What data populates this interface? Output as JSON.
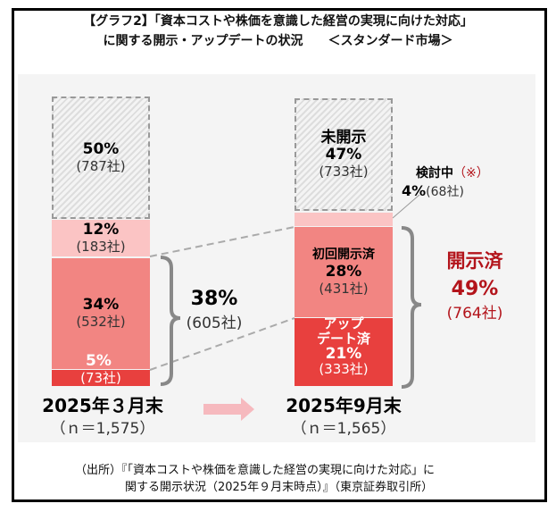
{
  "title": {
    "line1": "【グラフ2】「資本コストや株価を意識した経営の実現に向けた対応」",
    "line2": "に関する開示・アップデートの状況　　＜スタンダード市場＞"
  },
  "chart_data": {
    "type": "bar",
    "stacked": true,
    "categories": [
      "2025年３月末",
      "2025年9月末"
    ],
    "n_labels": [
      "（ｎ＝1,575）",
      "（ｎ＝1,565）"
    ],
    "series": [
      {
        "name": "アップデート済",
        "values": [
          5,
          21
        ],
        "counts": [
          73,
          333
        ]
      },
      {
        "name": "初回開示済",
        "values": [
          34,
          28
        ],
        "counts": [
          532,
          431
        ]
      },
      {
        "name": "検討中",
        "values": [
          12,
          4
        ],
        "counts": [
          183,
          68
        ]
      },
      {
        "name": "未開示",
        "values": [
          50,
          47
        ],
        "counts": [
          787,
          733
        ]
      }
    ],
    "bars": {
      "mar": {
        "unopened_pct": "50%",
        "unopened_cnt": "(787社)",
        "consider_pct": "12%",
        "consider_cnt": "(183社)",
        "first_pct": "34%",
        "first_cnt": "(532社)",
        "update_pct": "5%",
        "update_cnt": "(73社)"
      },
      "sep": {
        "unopened_label": "未開示",
        "unopened_pct": "47%",
        "unopened_cnt": "(733社)",
        "consider_label": "検討中",
        "consider_note": "（※）",
        "consider_pct": "4%",
        "consider_cnt": "(68社)",
        "first_label": "初回開示済",
        "first_pct": "28%",
        "first_cnt": "(431社)",
        "update_label1": "アップ",
        "update_label2": "デート済",
        "update_pct": "21%",
        "update_cnt": "(333社)"
      }
    },
    "totals": {
      "mar_pct": "38%",
      "mar_cnt": "(605社)",
      "sep_label": "開示済",
      "sep_pct": "49%",
      "sep_cnt": "(764社)"
    },
    "colors": {
      "consider": "#fbc4c4",
      "first": "#f28582",
      "update": "#e8403e",
      "accent": "#b3141b"
    }
  },
  "source": {
    "line1": "（出所）『「資本コストや株価を意識した経営の実現に向けた対応」に",
    "line2": "関する開示状況（2025年９月末時点）』（東京証券取引所）"
  }
}
